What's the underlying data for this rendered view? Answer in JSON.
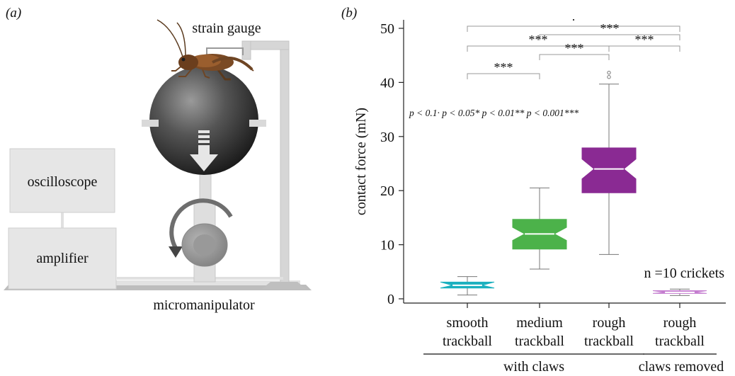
{
  "panel_a": {
    "label": "(a)",
    "labels": {
      "strain_gauge": "strain gauge",
      "oscilloscope": "oscilloscope",
      "amplifier": "amplifier",
      "micromanipulator": "micromanipulator"
    }
  },
  "panel_b": {
    "label": "(b)",
    "p_legend": "p < 0.1· p < 0.05* p < 0.01** p < 0.001***",
    "n_text": "n =10 crickets",
    "group_labels": [
      "with claws",
      "claws removed"
    ],
    "significance": [
      {
        "from": 0,
        "to": 3,
        "stars": "·"
      },
      {
        "from": 1,
        "to": 3,
        "stars": "***"
      },
      {
        "from": 0,
        "to": 2,
        "stars": "***"
      },
      {
        "from": 2,
        "to": 3,
        "stars": "***"
      },
      {
        "from": 1,
        "to": 2,
        "stars": "***"
      },
      {
        "from": 0,
        "to": 1,
        "stars": "***"
      }
    ]
  },
  "chart_data": {
    "type": "box",
    "ylabel": "contact force (mN)",
    "ylim": [
      0,
      52
    ],
    "yticks": [
      0,
      10,
      20,
      30,
      40,
      50
    ],
    "categories": [
      {
        "line1": "smooth",
        "line2": "trackball"
      },
      {
        "line1": "medium",
        "line2": "trackball"
      },
      {
        "line1": "rough",
        "line2": "trackball"
      },
      {
        "line1": "rough",
        "line2": "trackball"
      }
    ],
    "boxes": [
      {
        "whisker_low": 0.7,
        "q1": 2.0,
        "median": 2.5,
        "q3": 3.1,
        "whisker_high": 4.1,
        "outliers": [],
        "color": "#1bb0bf"
      },
      {
        "whisker_low": 5.5,
        "q1": 9.2,
        "median": 12.0,
        "q3": 14.7,
        "whisker_high": 20.5,
        "outliers": [],
        "color": "#4cb24a"
      },
      {
        "whisker_low": 8.2,
        "q1": 19.6,
        "median": 24.0,
        "q3": 27.9,
        "whisker_high": 39.7,
        "outliers": [
          41.0,
          41.8
        ],
        "color": "#8a2a93"
      },
      {
        "whisker_low": 0.6,
        "q1": 1.0,
        "median": 1.2,
        "q3": 1.5,
        "whisker_high": 1.8,
        "outliers": [],
        "color": "#c47ccf"
      }
    ]
  }
}
